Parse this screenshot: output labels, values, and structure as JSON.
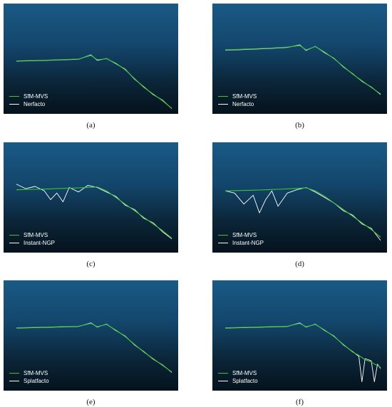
{
  "chart_data": [
    {
      "type": "line",
      "caption": "(a)",
      "series": [
        {
          "name": "SfM-MVS",
          "color": "#3fc23a"
        },
        {
          "name": "Nerfacto",
          "color": "#ffffff"
        }
      ],
      "x": [
        0,
        10,
        20,
        30,
        40,
        48,
        52,
        58,
        64,
        70,
        76,
        82,
        88,
        94,
        100
      ],
      "y": {
        "SfM-MVS": [
          52,
          51.7,
          51.3,
          50.8,
          50.3,
          47,
          51,
          50,
          54,
          60,
          68,
          76,
          82,
          88,
          95
        ],
        "Nerfacto": [
          52.2,
          51.9,
          51.5,
          51,
          50.5,
          46.5,
          51.5,
          49.8,
          54.5,
          59.5,
          68.5,
          75.5,
          82.5,
          87.5,
          95.3
        ]
      }
    },
    {
      "type": "line",
      "caption": "(b)",
      "series": [
        {
          "name": "SfM-MVS",
          "color": "#3fc23a"
        },
        {
          "name": "Nerfacto",
          "color": "#ffffff"
        }
      ],
      "x": [
        0,
        10,
        20,
        30,
        40,
        48,
        52,
        58,
        64,
        70,
        76,
        82,
        88,
        94,
        100
      ],
      "y": {
        "SfM-MVS": [
          42,
          41.5,
          40.9,
          40.3,
          39.5,
          38,
          42,
          39,
          44,
          50,
          57,
          64,
          70,
          76,
          82
        ],
        "Nerfacto": [
          42.3,
          41.8,
          41.2,
          40.6,
          39.8,
          37.5,
          42.5,
          38.8,
          44.6,
          49.6,
          57.5,
          63.6,
          70.5,
          75.6,
          82.5
        ]
      }
    },
    {
      "type": "line",
      "caption": "(c)",
      "series": [
        {
          "name": "SfM-MVS",
          "color": "#3fc23a"
        },
        {
          "name": "Instant-NGP",
          "color": "#ffffff"
        }
      ],
      "x": [
        0,
        6,
        12,
        18,
        22,
        26,
        30,
        34,
        40,
        46,
        52,
        58,
        64,
        70,
        76,
        82,
        88,
        94,
        100
      ],
      "y": {
        "SfM-MVS": [
          43,
          42.8,
          42.6,
          42.4,
          42.2,
          42,
          41.8,
          41.6,
          41.3,
          40.9,
          40.5,
          44,
          50,
          56,
          62,
          68,
          74,
          80,
          87
        ],
        "Instant-NGP": [
          38,
          42,
          40,
          44,
          52,
          46,
          54,
          41,
          45,
          39,
          41,
          45,
          49,
          57,
          61,
          69,
          73,
          81,
          87.5
        ]
      }
    },
    {
      "type": "line",
      "caption": "(d)",
      "series": [
        {
          "name": "SfM-MVS",
          "color": "#3fc23a"
        },
        {
          "name": "Instant-NGP",
          "color": "#ffffff"
        }
      ],
      "x": [
        0,
        6,
        12,
        18,
        22,
        26,
        30,
        34,
        40,
        46,
        52,
        58,
        64,
        70,
        76,
        82,
        88,
        94,
        100
      ],
      "y": {
        "SfM-MVS": [
          44,
          43.8,
          43.6,
          43.4,
          43.2,
          43,
          42.8,
          42.6,
          42.2,
          41.8,
          41.3,
          44,
          49,
          55,
          61,
          67,
          73,
          79,
          86
        ],
        "Instant-NGP": [
          44,
          46,
          56,
          48,
          64,
          52,
          44,
          58,
          46,
          43,
          41,
          45,
          50,
          55,
          62,
          66,
          74,
          78,
          89
        ]
      }
    },
    {
      "type": "line",
      "caption": "(e)",
      "series": [
        {
          "name": "SfM-MVS",
          "color": "#3fc23a"
        },
        {
          "name": "Splatfacto",
          "color": "#ffffff"
        }
      ],
      "x": [
        0,
        10,
        20,
        30,
        40,
        48,
        52,
        58,
        64,
        70,
        76,
        82,
        88,
        94,
        100
      ],
      "y": {
        "SfM-MVS": [
          43,
          42.7,
          42.4,
          42,
          41.6,
          39,
          42,
          40,
          45,
          51,
          58,
          65,
          71,
          77,
          83
        ],
        "Splatfacto": [
          43.2,
          42.9,
          42.6,
          42.2,
          41.8,
          38.6,
          42.4,
          39.7,
          45.5,
          50.5,
          58.5,
          64.6,
          71.5,
          76.6,
          83.5
        ]
      }
    },
    {
      "type": "line",
      "caption": "(f)",
      "series": [
        {
          "name": "SfM-MVS",
          "color": "#3fc23a"
        },
        {
          "name": "Splatfacto",
          "color": "#ffffff"
        }
      ],
      "x": [
        0,
        10,
        20,
        30,
        40,
        48,
        52,
        58,
        64,
        70,
        76,
        82,
        86,
        88,
        90,
        94,
        96,
        98,
        100
      ],
      "y": {
        "SfM-MVS": [
          43,
          42.7,
          42.4,
          42,
          41.6,
          39,
          42,
          40,
          45,
          51,
          58,
          65,
          68,
          70,
          72,
          74,
          76,
          77,
          79
        ],
        "Splatfacto": [
          43.2,
          42.9,
          42.6,
          42.2,
          41.8,
          38.6,
          42.4,
          39.7,
          45.5,
          50.5,
          58.5,
          64.6,
          69,
          92,
          71,
          73,
          92,
          76,
          80
        ]
      }
    }
  ]
}
